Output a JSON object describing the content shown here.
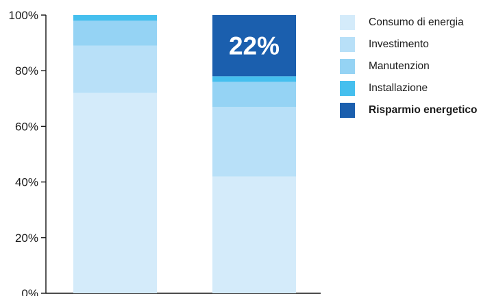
{
  "chart_data": {
    "type": "bar",
    "stacked": true,
    "categories": [
      "",
      ""
    ],
    "ylim": [
      0,
      100
    ],
    "yticks": [
      "0%",
      "20%",
      "40%",
      "60%",
      "80%",
      "100%"
    ],
    "series": [
      {
        "name": "Consumo di energia",
        "color": "#d4ebfa",
        "values": [
          72,
          42
        ]
      },
      {
        "name": "Investimento",
        "color": "#b8e0f8",
        "values": [
          17,
          25
        ]
      },
      {
        "name": "Manutenzion",
        "color": "#95d3f4",
        "values": [
          9,
          9
        ]
      },
      {
        "name": "Installazione",
        "color": "#45bfee",
        "values": [
          2,
          2
        ]
      },
      {
        "name": "Risparmio energetico",
        "color": "#1b5fae",
        "values": [
          0,
          22
        ],
        "bold": true
      }
    ],
    "annotations": [
      {
        "text": "22%",
        "bar": 1,
        "series": 4
      }
    ],
    "legend_position": "right"
  }
}
